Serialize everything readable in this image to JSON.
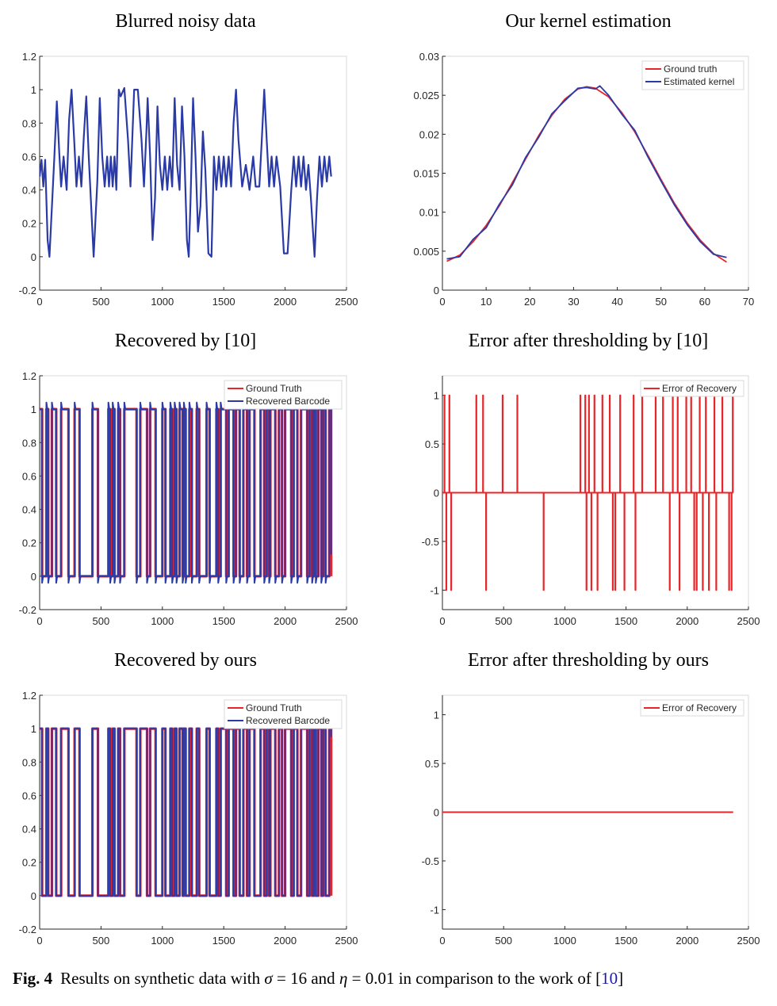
{
  "caption": {
    "label": "Fig. 4",
    "text_1": "Results on synthetic data with ",
    "sigma_symbol": "σ",
    "text_2": " = 16 and ",
    "eta_symbol": "η",
    "text_3": " = 0.01 in comparison to the work of [",
    "ref": "10",
    "text_4": "]"
  },
  "colors": {
    "blue": "#2a3aa6",
    "red": "#e8262a",
    "axis": "#262626",
    "box": "#d9d9d9"
  },
  "chart_data": [
    {
      "id": "blurred",
      "type": "line",
      "title": "Blurred noisy data",
      "xlim": [
        0,
        2500
      ],
      "ylim": [
        -0.2,
        1.2
      ],
      "xticks": [
        0,
        500,
        1000,
        1500,
        2000,
        2500
      ],
      "xtick_labels": [
        "0",
        "500",
        "1000",
        "1500",
        "2000",
        "2500"
      ],
      "yticks": [
        -0.2,
        0,
        0.2,
        0.4,
        0.6,
        0.8,
        1,
        1.2
      ],
      "ytick_labels": [
        "-0.2",
        "0",
        "0.2",
        "0.4",
        "0.6",
        "0.8",
        "1",
        "1.2"
      ],
      "legend": [],
      "series": [
        {
          "name": "Blurred noisy data",
          "color": "#2a3aa6",
          "x": [
            0,
            15,
            30,
            45,
            65,
            80,
            100,
            120,
            140,
            160,
            175,
            195,
            220,
            240,
            260,
            280,
            300,
            320,
            340,
            360,
            380,
            400,
            420,
            440,
            460,
            470,
            490,
            510,
            530,
            550,
            565,
            580,
            595,
            610,
            625,
            645,
            660,
            690,
            720,
            740,
            770,
            800,
            830,
            850,
            870,
            880,
            900,
            920,
            940,
            960,
            980,
            1000,
            1020,
            1040,
            1060,
            1080,
            1100,
            1120,
            1140,
            1160,
            1180,
            1200,
            1215,
            1230,
            1250,
            1270,
            1290,
            1310,
            1330,
            1350,
            1375,
            1400,
            1420,
            1440,
            1460,
            1480,
            1500,
            1520,
            1540,
            1560,
            1580,
            1600,
            1620,
            1650,
            1680,
            1710,
            1740,
            1760,
            1790,
            1810,
            1830,
            1850,
            1870,
            1890,
            1910,
            1930,
            1960,
            1990,
            2020,
            2050,
            2070,
            2090,
            2110,
            2130,
            2150,
            2170,
            2190,
            2210,
            2240,
            2260,
            2280,
            2300,
            2320,
            2340,
            2360,
            2375
          ],
          "y": [
            0.48,
            0.58,
            0.42,
            0.58,
            0.1,
            0.0,
            0.3,
            0.6,
            0.93,
            0.62,
            0.42,
            0.6,
            0.4,
            0.82,
            1.0,
            0.72,
            0.42,
            0.6,
            0.42,
            0.72,
            0.96,
            0.6,
            0.3,
            0.0,
            0.3,
            0.45,
            0.95,
            0.6,
            0.42,
            0.6,
            0.42,
            0.6,
            0.42,
            0.6,
            0.4,
            1.0,
            0.96,
            1.01,
            0.7,
            0.42,
            1.0,
            1.0,
            0.7,
            0.42,
            0.75,
            0.95,
            0.6,
            0.1,
            0.35,
            0.9,
            0.55,
            0.4,
            0.6,
            0.4,
            0.6,
            0.42,
            0.95,
            0.55,
            0.4,
            0.9,
            0.6,
            0.1,
            0.0,
            0.35,
            0.95,
            0.6,
            0.15,
            0.3,
            0.75,
            0.52,
            0.02,
            0.0,
            0.6,
            0.4,
            0.6,
            0.42,
            0.6,
            0.42,
            0.6,
            0.42,
            0.8,
            1.0,
            0.7,
            0.42,
            0.55,
            0.4,
            0.6,
            0.42,
            0.42,
            0.7,
            1.0,
            0.7,
            0.42,
            0.6,
            0.42,
            0.6,
            0.42,
            0.02,
            0.02,
            0.4,
            0.6,
            0.42,
            0.6,
            0.42,
            0.6,
            0.4,
            0.55,
            0.35,
            0.0,
            0.35,
            0.6,
            0.42,
            0.6,
            0.45,
            0.6,
            0.48
          ]
        }
      ]
    },
    {
      "id": "kernel",
      "type": "line",
      "title": "Our kernel estimation",
      "xlim": [
        0,
        70
      ],
      "ylim": [
        0,
        0.03
      ],
      "xticks": [
        0,
        10,
        20,
        30,
        40,
        50,
        60,
        70
      ],
      "xtick_labels": [
        "0",
        "10",
        "20",
        "30",
        "40",
        "50",
        "60",
        "70"
      ],
      "yticks": [
        0,
        0.005,
        0.01,
        0.015,
        0.02,
        0.025,
        0.03
      ],
      "ytick_labels": [
        "0",
        "0.005",
        "0.01",
        "0.015",
        "0.02",
        "0.025",
        "0.03"
      ],
      "legend": [
        "Ground truth",
        "Estimated kernel"
      ],
      "series": [
        {
          "name": "Ground truth",
          "color": "#e8262a",
          "x": [
            1,
            4,
            7,
            10,
            13,
            16,
            19,
            22,
            25,
            28,
            31,
            33,
            35,
            38,
            41,
            44,
            47,
            50,
            53,
            56,
            59,
            62,
            65
          ],
          "y": [
            0.0037,
            0.0045,
            0.0062,
            0.0083,
            0.0108,
            0.0138,
            0.0168,
            0.0198,
            0.0224,
            0.0245,
            0.0258,
            0.0261,
            0.0259,
            0.0248,
            0.0228,
            0.0203,
            0.0173,
            0.0142,
            0.0112,
            0.0086,
            0.0064,
            0.0047,
            0.0036
          ]
        },
        {
          "name": "Estimated kernel",
          "color": "#2a3aa6",
          "x": [
            1,
            4,
            7,
            10,
            13,
            16,
            19,
            22,
            25,
            28,
            31,
            33,
            35,
            36,
            38,
            41,
            44,
            47,
            50,
            53,
            56,
            59,
            62,
            65
          ],
          "y": [
            0.004,
            0.0043,
            0.0065,
            0.008,
            0.011,
            0.0135,
            0.017,
            0.0196,
            0.0226,
            0.0243,
            0.0259,
            0.026,
            0.0258,
            0.0262,
            0.025,
            0.0226,
            0.0205,
            0.0171,
            0.014,
            0.011,
            0.0084,
            0.0062,
            0.0046,
            0.0042
          ]
        }
      ]
    },
    {
      "id": "rec10",
      "type": "line",
      "title": "Recovered by [10]",
      "xlim": [
        0,
        2500
      ],
      "ylim": [
        -0.2,
        1.2
      ],
      "xticks": [
        0,
        500,
        1000,
        1500,
        2000,
        2500
      ],
      "xtick_labels": [
        "0",
        "500",
        "1000",
        "1500",
        "2000",
        "2500"
      ],
      "yticks": [
        -0.2,
        0,
        0.2,
        0.4,
        0.6,
        0.8,
        1,
        1.2
      ],
      "ytick_labels": [
        "-0.2",
        "0",
        "0.2",
        "0.4",
        "0.6",
        "0.8",
        "1",
        "1.2"
      ],
      "legend": [
        "Ground Truth",
        "Recovered Barcode"
      ],
      "barcode_transitions": [
        0,
        20,
        55,
        70,
        100,
        135,
        175,
        235,
        285,
        325,
        430,
        475,
        560,
        575,
        595,
        610,
        640,
        655,
        690,
        790,
        820,
        875,
        900,
        945,
        1000,
        1025,
        1065,
        1080,
        1100,
        1115,
        1140,
        1165,
        1175,
        1190,
        1220,
        1240,
        1280,
        1300,
        1360,
        1385,
        1440,
        1455,
        1475,
        1520,
        1540,
        1580,
        1600,
        1630,
        1660,
        1690,
        1710,
        1750,
        1800,
        1830,
        1850,
        1870,
        1880,
        1920,
        1950,
        1975,
        2000,
        2050,
        2070,
        2100,
        2130,
        2180,
        2200,
        2220,
        2235,
        2250,
        2270,
        2295,
        2310,
        2330,
        2360,
        2375
      ],
      "series": [
        {
          "name": "Ground Truth",
          "color": "#e8262a",
          "overshoot": 0,
          "tail_x": 2375,
          "tail_y": 0
        },
        {
          "name": "Recovered Barcode",
          "color": "#2a3aa6",
          "overshoot": 0.04,
          "tail_x": 2375,
          "tail_y": 0.13
        }
      ]
    },
    {
      "id": "err10",
      "type": "line",
      "title": "Error after thresholding by [10]",
      "xlim": [
        0,
        2500
      ],
      "ylim": [
        -1.2,
        1.2
      ],
      "xticks": [
        0,
        500,
        1000,
        1500,
        2000,
        2500
      ],
      "xtick_labels": [
        "0",
        "500",
        "1000",
        "1500",
        "2000",
        "2500"
      ],
      "yticks": [
        -1,
        -0.5,
        0,
        0.5,
        1
      ],
      "ytick_labels": [
        "-1",
        "-0.5",
        "0",
        "0.5",
        "1"
      ],
      "legend": [
        "Error of Recovery"
      ],
      "x_end": 2375,
      "spikes_up": [
        15,
        55,
        275,
        330,
        490,
        610,
        1125,
        1165,
        1195,
        1240,
        1305,
        1365,
        1450,
        1560,
        1630,
        1740,
        1800,
        1880,
        1920,
        1990,
        2030,
        2100,
        2150,
        2220,
        2285,
        2370
      ],
      "spikes_down": [
        30,
        70,
        355,
        825,
        1175,
        1215,
        1265,
        1390,
        1410,
        1485,
        1575,
        1855,
        1935,
        2055,
        2075,
        2125,
        2175,
        2235,
        2340,
        2360
      ],
      "series": [
        {
          "name": "Error of Recovery",
          "color": "#e8262a"
        }
      ]
    },
    {
      "id": "recours",
      "type": "line",
      "title": "Recovered by ours",
      "xlim": [
        0,
        2500
      ],
      "ylim": [
        -0.2,
        1.2
      ],
      "xticks": [
        0,
        500,
        1000,
        1500,
        2000,
        2500
      ],
      "xtick_labels": [
        "0",
        "500",
        "1000",
        "1500",
        "2000",
        "2500"
      ],
      "yticks": [
        -0.2,
        0,
        0.2,
        0.4,
        0.6,
        0.8,
        1,
        1.2
      ],
      "ytick_labels": [
        "-0.2",
        "0",
        "0.2",
        "0.4",
        "0.6",
        "0.8",
        "1",
        "1.2"
      ],
      "legend": [
        "Ground Truth",
        "Recovered Barcode"
      ],
      "barcode_transitions": [
        0,
        20,
        55,
        70,
        100,
        135,
        175,
        235,
        285,
        325,
        430,
        475,
        560,
        575,
        595,
        610,
        640,
        655,
        690,
        790,
        820,
        875,
        900,
        945,
        1000,
        1025,
        1065,
        1080,
        1100,
        1115,
        1140,
        1165,
        1175,
        1190,
        1220,
        1240,
        1280,
        1300,
        1360,
        1385,
        1440,
        1455,
        1475,
        1520,
        1540,
        1580,
        1600,
        1630,
        1660,
        1690,
        1710,
        1750,
        1800,
        1830,
        1850,
        1870,
        1880,
        1920,
        1950,
        1975,
        2000,
        2050,
        2070,
        2100,
        2130,
        2180,
        2200,
        2220,
        2235,
        2250,
        2270,
        2295,
        2310,
        2330,
        2360,
        2375
      ],
      "series": [
        {
          "name": "Ground Truth",
          "color": "#e8262a",
          "overshoot": 0,
          "tail_x": 2375,
          "tail_y": 0
        },
        {
          "name": "Recovered Barcode",
          "color": "#2a3aa6",
          "overshoot": 0,
          "tail_x": 2375,
          "tail_y": 0.95
        }
      ]
    },
    {
      "id": "errours",
      "type": "line",
      "title": "Error after thresholding by ours",
      "xlim": [
        0,
        2500
      ],
      "ylim": [
        -1.2,
        1.2
      ],
      "xticks": [
        0,
        500,
        1000,
        1500,
        2000,
        2500
      ],
      "xtick_labels": [
        "0",
        "500",
        "1000",
        "1500",
        "2000",
        "2500"
      ],
      "yticks": [
        -1,
        -0.5,
        0,
        0.5,
        1
      ],
      "ytick_labels": [
        "-1",
        "-0.5",
        "0",
        "0.5",
        "1"
      ],
      "legend": [
        "Error of Recovery"
      ],
      "x_end": 2375,
      "spikes_up": [],
      "spikes_down": [],
      "series": [
        {
          "name": "Error of Recovery",
          "color": "#e8262a"
        }
      ]
    }
  ]
}
